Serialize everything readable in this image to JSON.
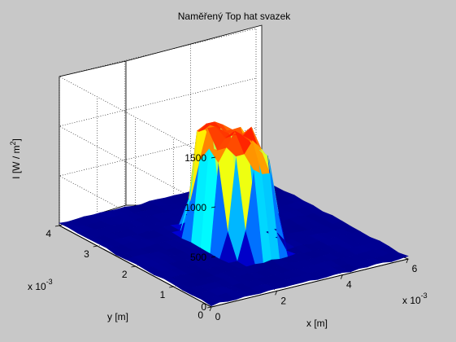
{
  "chart_data": {
    "type": "surface",
    "title": "Naměřený Top hat svazek",
    "xlabel": "x [m]",
    "ylabel": "y [m]",
    "zlabel_main": "I [W / m",
    "zlabel_sup": "2",
    "zlabel_end": "]",
    "x_multiplier": "x 10",
    "y_multiplier": "x 10",
    "multiplier_exponent": "-3",
    "x_ticks": [
      "0",
      "2",
      "4",
      "6"
    ],
    "y_ticks": [
      "0",
      "1",
      "2",
      "3",
      "4"
    ],
    "z_ticks": [
      "0",
      "500",
      "1000",
      "1500"
    ],
    "xlim": [
      0,
      6
    ],
    "ylim": [
      0,
      4
    ],
    "zlim": [
      0,
      1500
    ],
    "colormap": "jet",
    "grid": true,
    "beam": {
      "shape": "top-hat",
      "center_x": 3.0,
      "center_y": 2.0,
      "radius": 0.85,
      "peak_intensity": 1250,
      "background_intensity": 20,
      "grid_points_x": 25,
      "grid_points_y": 17,
      "units": "x, y in 10^-3 m; I in W/m^2"
    }
  }
}
